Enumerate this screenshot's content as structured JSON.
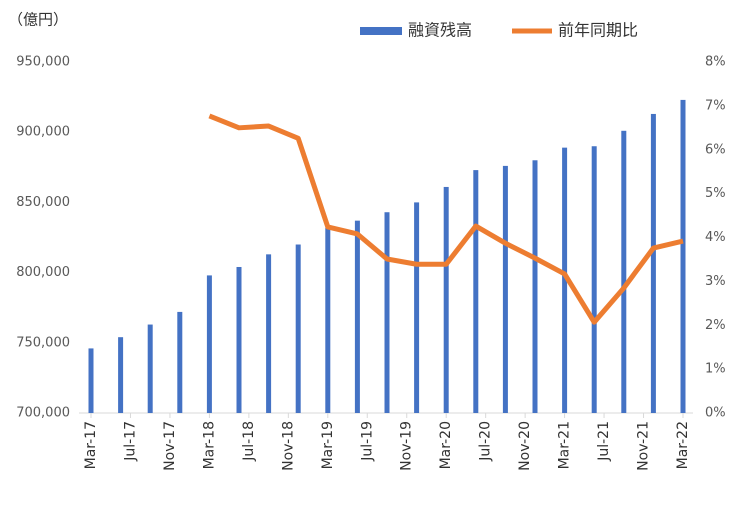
{
  "chart_data": {
    "type": "bar_line",
    "unit_label": "（億円）",
    "x": [
      "2017-03",
      "2017-06",
      "2017-09",
      "2017-12",
      "2018-03",
      "2018-06",
      "2018-09",
      "2018-12",
      "2019-03",
      "2019-06",
      "2019-09",
      "2019-12",
      "2020-03",
      "2020-06",
      "2020-09",
      "2020-12",
      "2021-03",
      "2021-06",
      "2021-09",
      "2021-12",
      "2022-03"
    ],
    "xlim": [
      "2017-03",
      "2022-03"
    ],
    "xticks": [
      {
        "value": "2017-03",
        "label": "Mar-17"
      },
      {
        "value": "2017-07",
        "label": "Jul-17"
      },
      {
        "value": "2017-11",
        "label": "Nov-17"
      },
      {
        "value": "2018-03",
        "label": "Mar-18"
      },
      {
        "value": "2018-07",
        "label": "Jul-18"
      },
      {
        "value": "2018-11",
        "label": "Nov-18"
      },
      {
        "value": "2019-03",
        "label": "Mar-19"
      },
      {
        "value": "2019-07",
        "label": "Jul-19"
      },
      {
        "value": "2019-11",
        "label": "Nov-19"
      },
      {
        "value": "2020-03",
        "label": "Mar-20"
      },
      {
        "value": "2020-07",
        "label": "Jul-20"
      },
      {
        "value": "2020-11",
        "label": "Nov-20"
      },
      {
        "value": "2021-03",
        "label": "Mar-21"
      },
      {
        "value": "2021-07",
        "label": "Jul-21"
      },
      {
        "value": "2021-11",
        "label": "Nov-21"
      },
      {
        "value": "2022-03",
        "label": "Mar-22"
      }
    ],
    "series": [
      {
        "name": "融資残高",
        "type": "bar",
        "color": "#4472c4",
        "values": [
          746000,
          754000,
          763000,
          772000,
          798000,
          804000,
          813000,
          820000,
          832000,
          837000,
          843000,
          850000,
          861000,
          873000,
          876000,
          880000,
          889000,
          890000,
          901000,
          913000,
          923000
        ]
      },
      {
        "name": "前年同期比",
        "type": "line",
        "axis": "y2",
        "color": "#ed7d31",
        "values": [
          null,
          null,
          null,
          null,
          6.77,
          6.5,
          6.54,
          6.26,
          4.24,
          4.08,
          3.51,
          3.39,
          3.39,
          4.26,
          3.87,
          3.53,
          3.17,
          2.07,
          2.85,
          3.76,
          3.92
        ]
      }
    ],
    "ylim": [
      700000,
      950000
    ],
    "yticks": [
      {
        "value": 700000,
        "label": "700,000"
      },
      {
        "value": 750000,
        "label": "750,000"
      },
      {
        "value": 800000,
        "label": "800,000"
      },
      {
        "value": 850000,
        "label": "850,000"
      },
      {
        "value": 900000,
        "label": "900,000"
      },
      {
        "value": 950000,
        "label": "950,000"
      }
    ],
    "y2lim": [
      0,
      8
    ],
    "y2ticks": [
      {
        "value": 0,
        "label": "0%"
      },
      {
        "value": 1,
        "label": "1%"
      },
      {
        "value": 2,
        "label": "2%"
      },
      {
        "value": 3,
        "label": "3%"
      },
      {
        "value": 4,
        "label": "4%"
      },
      {
        "value": 5,
        "label": "5%"
      },
      {
        "value": 6,
        "label": "6%"
      },
      {
        "value": 7,
        "label": "7%"
      },
      {
        "value": 8,
        "label": "8%"
      }
    ],
    "legend": "top-right"
  }
}
